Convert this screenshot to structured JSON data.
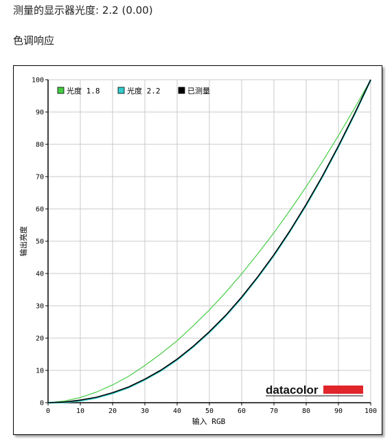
{
  "header": {
    "measured_gamma_label": "测量的显示器光度:",
    "measured_gamma_value": "2.2 (0.00)",
    "section_title": "色调响应"
  },
  "chart_data": {
    "type": "line",
    "xlabel": "输入 RGB",
    "ylabel": "输出亮度",
    "xlim": [
      0,
      100
    ],
    "ylim": [
      0,
      100
    ],
    "x_ticks": [
      "0",
      "10",
      "20",
      "30",
      "40",
      "50",
      "60",
      "70",
      "80",
      "90",
      "100"
    ],
    "y_ticks": [
      "0",
      "10",
      "20",
      "30",
      "40",
      "50",
      "60",
      "70",
      "80",
      "90",
      "100"
    ],
    "grid": true,
    "legend_position": "top-left",
    "series": [
      {
        "name": "光度 1.8",
        "color": "#44cc44",
        "x": [
          0,
          5,
          10,
          15,
          20,
          25,
          30,
          35,
          40,
          45,
          50,
          55,
          60,
          65,
          70,
          75,
          80,
          85,
          90,
          95,
          100
        ],
        "y": [
          0,
          0.5,
          1.6,
          3.3,
          5.5,
          8.2,
          11.5,
          15.2,
          19.2,
          23.8,
          28.7,
          34.1,
          39.9,
          46.1,
          52.6,
          59.6,
          66.9,
          74.6,
          82.7,
          91.2,
          100
        ]
      },
      {
        "name": "光度 2.2",
        "color": "#33cccc",
        "x": [
          0,
          5,
          10,
          15,
          20,
          25,
          30,
          35,
          40,
          45,
          50,
          55,
          60,
          65,
          70,
          75,
          80,
          85,
          90,
          95,
          100
        ],
        "y": [
          0,
          0.1,
          0.6,
          1.5,
          2.9,
          4.7,
          7.1,
          9.9,
          13.3,
          17.3,
          21.8,
          26.8,
          32.5,
          38.8,
          45.6,
          53.1,
          61.2,
          69.9,
          79.3,
          89.3,
          100
        ]
      },
      {
        "name": "已测量",
        "color": "#000000",
        "x": [
          0,
          5,
          10,
          15,
          20,
          25,
          30,
          35,
          40,
          45,
          50,
          55,
          60,
          65,
          70,
          75,
          80,
          85,
          90,
          95,
          100
        ],
        "y": [
          0,
          0.2,
          0.8,
          1.7,
          3.1,
          4.9,
          7.3,
          10.1,
          13.5,
          17.5,
          22.0,
          27.0,
          32.7,
          39.0,
          45.8,
          53.3,
          61.4,
          70.1,
          79.5,
          89.5,
          100
        ]
      }
    ]
  },
  "logo": {
    "text": "datacolor",
    "bar_color": "#e0252b"
  }
}
